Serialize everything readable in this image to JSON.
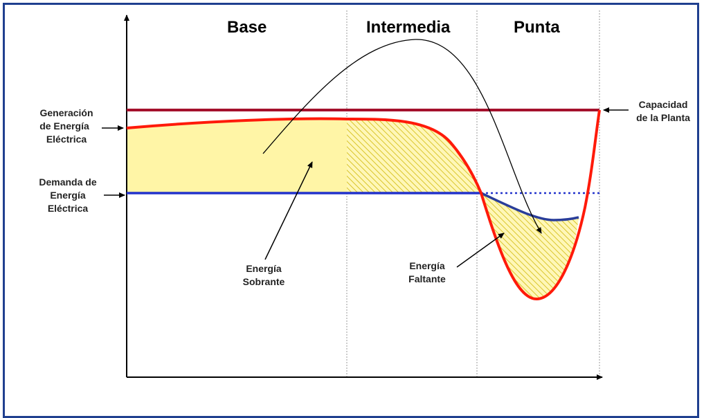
{
  "bands": {
    "base": "Base",
    "intermedia": "Intermedia",
    "punta": "Punta"
  },
  "labels": {
    "generacion": [
      "Generación",
      "de Energía",
      "Eléctrica"
    ],
    "demanda": [
      "Demanda de",
      "Energía",
      "Eléctrica"
    ],
    "capacidad": [
      "Capacidad",
      "de la Planta"
    ],
    "sobrante": [
      "Energía",
      "Sobrante"
    ],
    "faltante": [
      "Energía",
      "Faltante"
    ]
  },
  "colors": {
    "capacity_line": "#a4102c",
    "generation_curve": "#ff1a0a",
    "demand_line": "#2233cc",
    "fill": "#fff5a6",
    "frame": "#1f3f8f"
  }
}
